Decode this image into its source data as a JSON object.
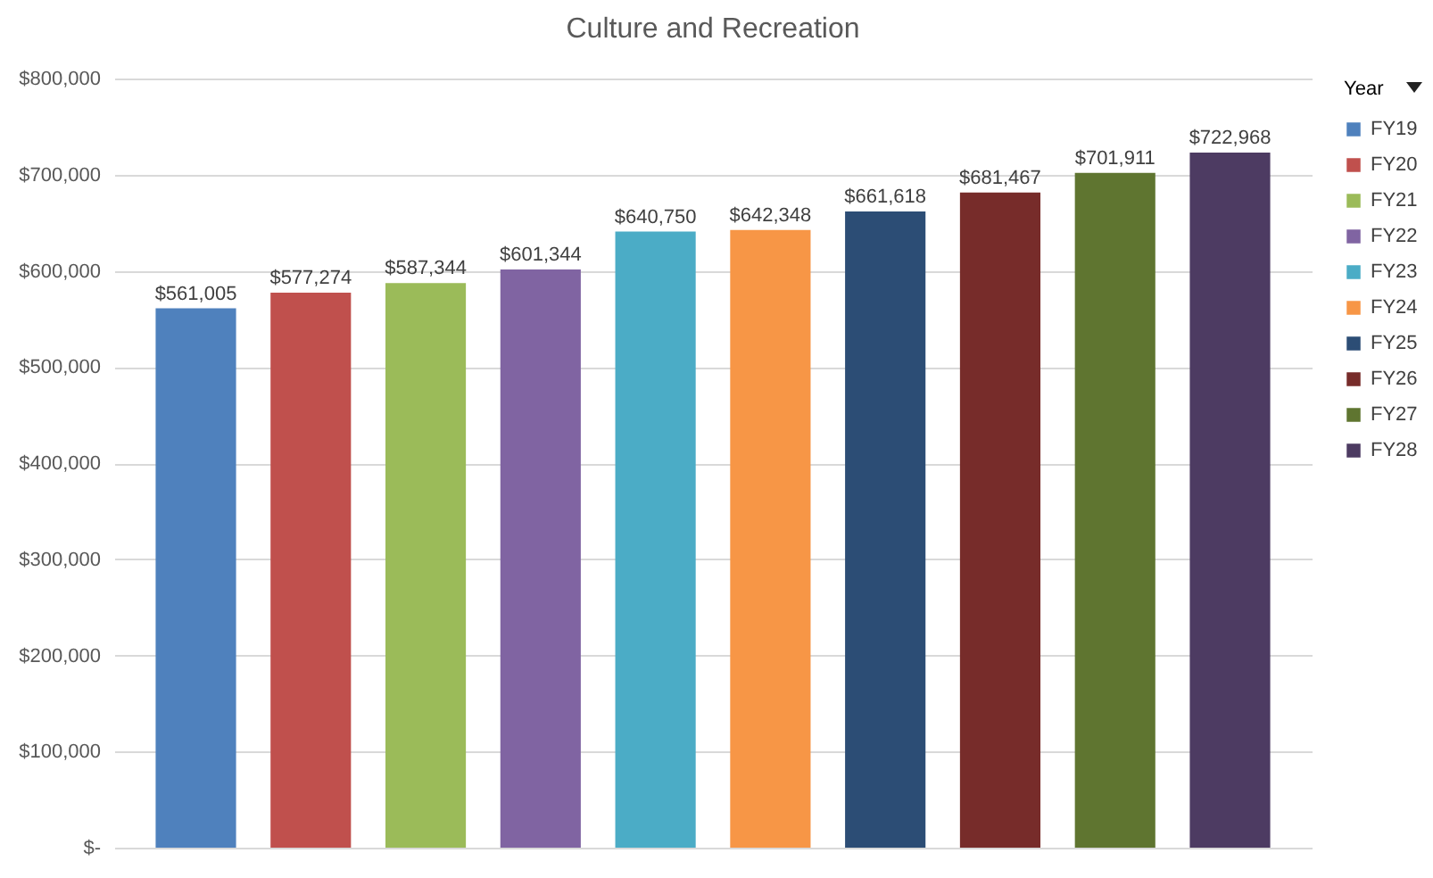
{
  "chart_data": {
    "type": "bar",
    "title": "Culture and Recreation",
    "categories": [
      null
    ],
    "legend_title": "Year",
    "legend": "right",
    "grid": "y",
    "ylim": [
      0,
      800000
    ],
    "yticks": [
      {
        "value": 0,
        "label": "$-"
      },
      {
        "value": 100000,
        "label": "$100,000"
      },
      {
        "value": 200000,
        "label": "$200,000"
      },
      {
        "value": 300000,
        "label": "$300,000"
      },
      {
        "value": 400000,
        "label": "$400,000"
      },
      {
        "value": 500000,
        "label": "$500,000"
      },
      {
        "value": 600000,
        "label": "$600,000"
      },
      {
        "value": 700000,
        "label": "$700,000"
      },
      {
        "value": 800000,
        "label": "$800,000"
      }
    ],
    "series": [
      {
        "name": "FY19",
        "color": "#4f81bd",
        "values": [
          561005
        ],
        "value_labels": [
          "$561,005"
        ]
      },
      {
        "name": "FY20",
        "color": "#c0504d",
        "values": [
          577274
        ],
        "value_labels": [
          "$577,274"
        ]
      },
      {
        "name": "FY21",
        "color": "#9bbb59",
        "values": [
          587344
        ],
        "value_labels": [
          "$587,344"
        ]
      },
      {
        "name": "FY22",
        "color": "#8064a2",
        "values": [
          601344
        ],
        "value_labels": [
          "$601,344"
        ]
      },
      {
        "name": "FY23",
        "color": "#4bacc6",
        "values": [
          640750
        ],
        "value_labels": [
          "$640,750"
        ]
      },
      {
        "name": "FY24",
        "color": "#f79646",
        "values": [
          642348
        ],
        "value_labels": [
          "$642,348"
        ]
      },
      {
        "name": "FY25",
        "color": "#2c4d75",
        "values": [
          661618
        ],
        "value_labels": [
          "$661,618"
        ]
      },
      {
        "name": "FY26",
        "color": "#772c2a",
        "values": [
          681467
        ],
        "value_labels": [
          "$681,467"
        ]
      },
      {
        "name": "FY27",
        "color": "#5f7530",
        "values": [
          701911
        ],
        "value_labels": [
          "$701,911"
        ]
      },
      {
        "name": "FY28",
        "color": "#4d3b62",
        "values": [
          722968
        ],
        "value_labels": [
          "$722,968"
        ]
      }
    ]
  }
}
